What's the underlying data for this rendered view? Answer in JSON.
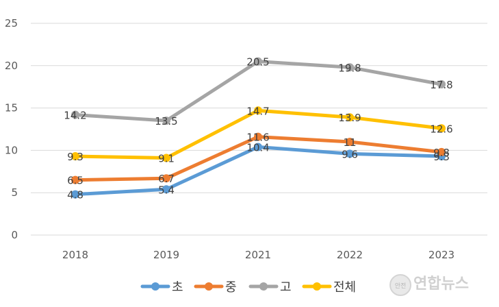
{
  "chart_data": {
    "type": "line",
    "title": "",
    "xlabel": "",
    "ylabel": "",
    "categories": [
      "2018",
      "2019",
      "2021",
      "2022",
      "2023"
    ],
    "ylim": [
      0,
      25
    ],
    "yticks": [
      0,
      5,
      10,
      15,
      20,
      25
    ],
    "grid": true,
    "legend_position": "bottom",
    "series": [
      {
        "name": "초",
        "color": "#5B9BD5",
        "values": [
          4.8,
          5.4,
          10.4,
          9.6,
          9.3
        ],
        "labels": [
          "4.8",
          "5.4",
          "10.4",
          "9.6",
          "9.3"
        ]
      },
      {
        "name": "중",
        "color": "#ED7D31",
        "values": [
          6.5,
          6.7,
          11.6,
          11,
          9.8
        ],
        "labels": [
          "6.5",
          "6.7",
          "11.6",
          "11",
          "9.8"
        ]
      },
      {
        "name": "고",
        "color": "#A5A5A5",
        "values": [
          14.2,
          13.5,
          20.5,
          19.8,
          17.8
        ],
        "labels": [
          "14.2",
          "13.5",
          "20.5",
          "19.8",
          "17.8"
        ]
      },
      {
        "name": "전체",
        "color": "#FFC000",
        "values": [
          9.3,
          9.1,
          14.7,
          13.9,
          12.6
        ],
        "labels": [
          "9.3",
          "9.1",
          "14.7",
          "13.9",
          "12.6"
        ]
      }
    ]
  },
  "watermark": {
    "emblem_text": "안전",
    "brand": "연합뉴스"
  }
}
